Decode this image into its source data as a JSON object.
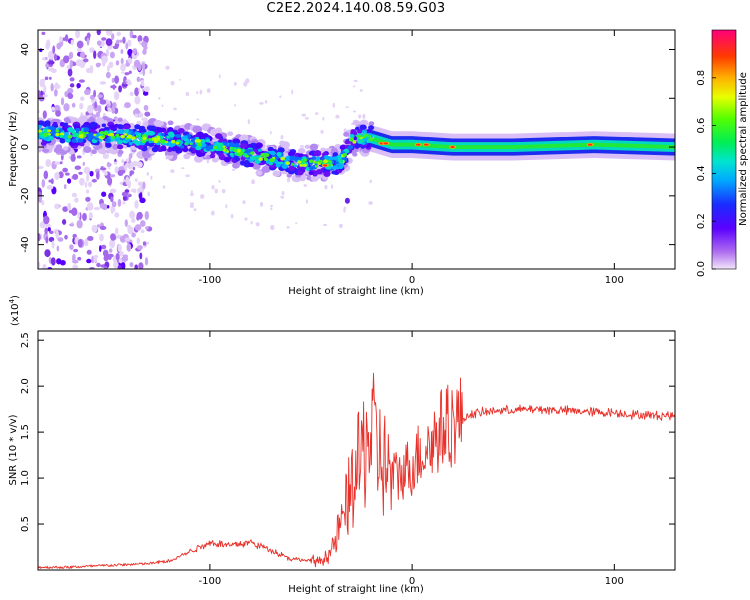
{
  "title": "C2E2.2024.140.08.59.G03",
  "chart_data": [
    {
      "type": "heatmap",
      "xlabel": "Height of straight line (km)",
      "ylabel": "Frequency (Hz)",
      "xlim": [
        -185,
        130
      ],
      "ylim": [
        -50,
        48
      ],
      "x_ticks": [
        -100,
        0,
        100
      ],
      "y_ticks": [
        -40,
        -20,
        0,
        20,
        40
      ],
      "colorbar": {
        "label": "Normalized spectral amplitude",
        "range": [
          0.0,
          1.0
        ],
        "ticks": [
          0.0,
          0.2,
          0.4,
          0.6,
          0.8
        ],
        "tick_labels": [
          "0.0",
          "0.2",
          "0.4",
          "0.6",
          "0.8"
        ]
      },
      "ridge": {
        "x": [
          -185,
          -170,
          -150,
          -140,
          -120,
          -100,
          -80,
          -60,
          -45,
          -35,
          -30,
          -22,
          -10,
          0,
          20,
          50,
          90,
          130
        ],
        "frequency": [
          6,
          5,
          5,
          4,
          3,
          1,
          -3,
          -6,
          -7,
          -6,
          3,
          4,
          1,
          1,
          0,
          0,
          1,
          0
        ]
      },
      "grid": false
    },
    {
      "type": "line",
      "xlabel": "Height of straight line (km)",
      "ylabel": "SNR (10 * v/v)",
      "y_multiplier_label": "(x10",
      "y_multiplier_exponent": "4",
      "xlim": [
        -185,
        130
      ],
      "ylim": [
        0,
        2.6
      ],
      "x_ticks": [
        -100,
        0,
        100
      ],
      "y_ticks": [
        0.5,
        1.0,
        1.5,
        2.0,
        2.5
      ],
      "y_tick_labels": [
        "0.5",
        "1.0",
        "1.5",
        "2.0",
        "2.5"
      ],
      "series": [
        {
          "color": "#e8312a",
          "x": [
            -185,
            -170,
            -150,
            -130,
            -120,
            -110,
            -100,
            -90,
            -80,
            -70,
            -60,
            -50,
            -45,
            -40,
            -35,
            -30,
            -25,
            -22,
            -18,
            -15,
            -10,
            -5,
            0,
            5,
            8,
            10,
            12,
            15,
            20,
            25,
            30,
            40,
            50,
            60,
            70,
            80,
            90,
            100,
            110,
            120,
            130
          ],
          "y": [
            0.03,
            0.03,
            0.05,
            0.07,
            0.1,
            0.2,
            0.3,
            0.27,
            0.3,
            0.22,
            0.12,
            0.1,
            0.1,
            0.2,
            0.5,
            0.9,
            1.2,
            1.5,
            1.35,
            1.2,
            1.0,
            1.05,
            1.15,
            1.3,
            1.35,
            1.4,
            1.45,
            1.55,
            1.6,
            1.65,
            1.7,
            1.73,
            1.74,
            1.75,
            1.74,
            1.73,
            1.72,
            1.71,
            1.69,
            1.68,
            1.68
          ]
        }
      ],
      "grid": false
    }
  ]
}
